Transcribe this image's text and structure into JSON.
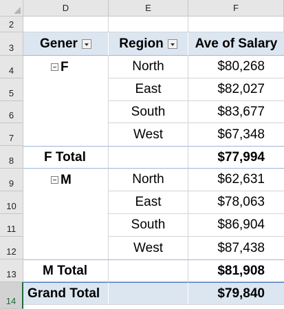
{
  "columns": [
    "D",
    "E",
    "F"
  ],
  "rows": [
    "2",
    "3",
    "4",
    "5",
    "6",
    "7",
    "8",
    "9",
    "10",
    "11",
    "12",
    "13",
    "14"
  ],
  "header": {
    "gender": "Gener",
    "region": "Region",
    "salary": "Ave of Salary"
  },
  "groups": [
    {
      "label": "F",
      "total_label": "F Total",
      "total": "$77,994",
      "rows": [
        {
          "region": "North",
          "salary": "$80,268"
        },
        {
          "region": "East",
          "salary": "$82,027"
        },
        {
          "region": "South",
          "salary": "$83,677"
        },
        {
          "region": "West",
          "salary": "$67,348"
        }
      ]
    },
    {
      "label": "M",
      "total_label": "M Total",
      "total": "$81,908",
      "rows": [
        {
          "region": "North",
          "salary": "$62,631"
        },
        {
          "region": "East",
          "salary": "$78,063"
        },
        {
          "region": "South",
          "salary": "$86,904"
        },
        {
          "region": "West",
          "salary": "$87,438"
        }
      ]
    }
  ],
  "grand_total": {
    "label": "Grand Total",
    "value": "$79,840"
  },
  "icons": {
    "filter": "filter-dropdown-icon",
    "collapse": "collapse-minus-icon"
  },
  "colors": {
    "header_band": "#dce6f1",
    "selection_accent": "#1e6b3a"
  }
}
